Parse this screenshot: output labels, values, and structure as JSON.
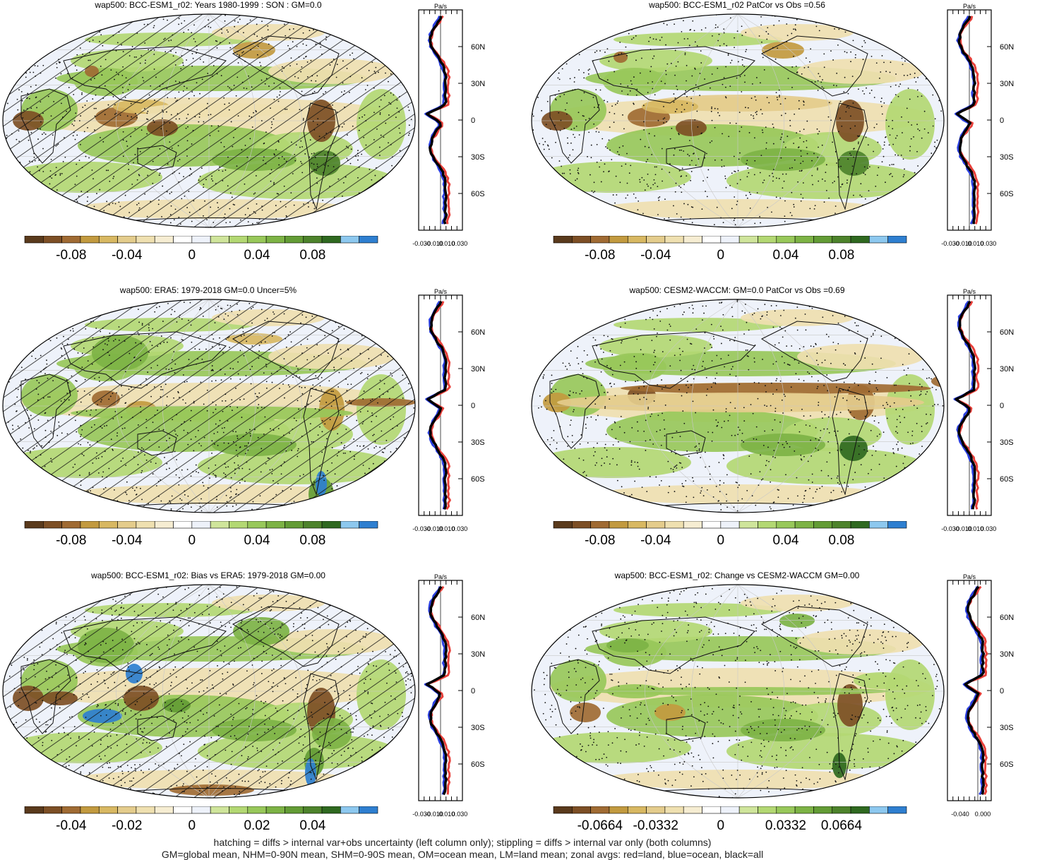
{
  "palette": [
    "#5a3a1c",
    "#7d4f25",
    "#a06b33",
    "#c29a3f",
    "#d8b862",
    "#e4cc8c",
    "#efe0b0",
    "#f6edd2",
    "#ffffff",
    "#eef2fa",
    "#cfe59b",
    "#b3d873",
    "#98c85a",
    "#7db345",
    "#639c35",
    "#4d832b",
    "#2f6920",
    "#8dc8ef",
    "#2e7fd0"
  ],
  "colors": {
    "land": "#e8403a",
    "ocean": "#2b3fe0",
    "all": "#000000",
    "coast": "#111111"
  },
  "footer": {
    "line1": "hatching = diffs > internal var+obs uncertainty (left column only); stippling = diffs > internal var only (both columns)",
    "line2": "GM=global mean, NHM=0-90N mean, SHM=0-90S mean, OM=ocean mean, LM=land mean; zonal avgs: red=land, blue=ocean, black=all"
  },
  "panels": [
    {
      "id": "p1",
      "title": "wap500: BCC-ESM1_r02: Years 1980-1999 : SON : GM=0.0",
      "hatched": true,
      "stipple": true,
      "cbar_labels": [
        "-0.08",
        "-0.04",
        "0",
        "0.04",
        "0.08"
      ],
      "zonal_ticks": [
        "-0.030",
        "-0.010",
        "0.010",
        "0.030"
      ],
      "unit": "Pa/s"
    },
    {
      "id": "p2",
      "title": "wap500: BCC-ESM1_r02 PatCor vs Obs =0.56",
      "hatched": false,
      "stipple": true,
      "cbar_labels": [
        "-0.08",
        "-0.04",
        "0",
        "0.04",
        "0.08"
      ],
      "zonal_ticks": [
        "-0.030",
        "-0.010",
        "0.010",
        "0.030"
      ],
      "unit": "Pa/s"
    },
    {
      "id": "p3",
      "title": "wap500: ERA5: 1979-2018 GM=0.0 Uncer=5%",
      "hatched": true,
      "stipple": true,
      "cbar_labels": [
        "-0.08",
        "-0.04",
        "0",
        "0.04",
        "0.08"
      ],
      "zonal_ticks": [
        "-0.030",
        "-0.010",
        "0.010",
        "0.030"
      ],
      "unit": "Pa/s"
    },
    {
      "id": "p4",
      "title": "wap500: CESM2-WACCM: GM=0.0 PatCor vs Obs =0.69",
      "hatched": false,
      "stipple": true,
      "cbar_labels": [
        "-0.08",
        "-0.04",
        "0",
        "0.04",
        "0.08"
      ],
      "zonal_ticks": [
        "-0.030",
        "-0.010",
        "0.010",
        "0.030"
      ],
      "unit": "Pa/s"
    },
    {
      "id": "p5",
      "title": "wap500: BCC-ESM1_r02: Bias vs ERA5: 1979-2018  GM=0.00",
      "hatched": true,
      "stipple": true,
      "cbar_labels": [
        "-0.04",
        "-0.02",
        "0",
        "0.02",
        "0.04"
      ],
      "zonal_ticks": [
        "-0.030",
        "-0.010",
        "0.010",
        "0.030"
      ],
      "unit": "Pa/s"
    },
    {
      "id": "p6",
      "title": "wap500: BCC-ESM1_r02: Change vs CESM2-WACCM GM=0.00",
      "hatched": false,
      "stipple": true,
      "cbar_labels": [
        "-0.0664",
        "-0.0332",
        "0",
        "0.0332",
        "0.0664"
      ],
      "zonal_ticks": [
        "-0.040",
        "0.000"
      ],
      "unit": "Pa/s"
    }
  ],
  "lat_labels": [
    "60N",
    "30N",
    "0",
    "30S",
    "60S"
  ],
  "chart_data": [
    {
      "type": "heatmap",
      "title": "wap500: BCC-ESM1_r02: Years 1980-1999 : SON : GM=0.0",
      "colorbar": [
        -0.08,
        -0.04,
        0,
        0.04,
        0.08
      ],
      "zonal_xlim": [
        -0.03,
        0.03
      ],
      "zonal_xticks": [
        -0.03,
        -0.01,
        0.01,
        0.03
      ],
      "lat_ticks": [
        60,
        30,
        0,
        -30,
        -60
      ]
    },
    {
      "type": "heatmap",
      "title": "wap500: BCC-ESM1_r02 PatCor vs Obs =0.56",
      "colorbar": [
        -0.08,
        -0.04,
        0,
        0.04,
        0.08
      ],
      "zonal_xlim": [
        -0.03,
        0.03
      ],
      "zonal_xticks": [
        -0.03,
        -0.01,
        0.01,
        0.03
      ],
      "lat_ticks": [
        60,
        30,
        0,
        -30,
        -60
      ]
    },
    {
      "type": "heatmap",
      "title": "wap500: ERA5: 1979-2018 GM=0.0 Uncer=5%",
      "colorbar": [
        -0.08,
        -0.04,
        0,
        0.04,
        0.08
      ],
      "zonal_xlim": [
        -0.03,
        0.03
      ],
      "zonal_xticks": [
        -0.03,
        -0.01,
        0.01,
        0.03
      ],
      "lat_ticks": [
        60,
        30,
        0,
        -30,
        -60
      ]
    },
    {
      "type": "heatmap",
      "title": "wap500: CESM2-WACCM: GM=0.0 PatCor vs Obs =0.69",
      "colorbar": [
        -0.08,
        -0.04,
        0,
        0.04,
        0.08
      ],
      "zonal_xlim": [
        -0.03,
        0.03
      ],
      "zonal_xticks": [
        -0.03,
        -0.01,
        0.01,
        0.03
      ],
      "lat_ticks": [
        60,
        30,
        0,
        -30,
        -60
      ]
    },
    {
      "type": "heatmap",
      "title": "wap500: BCC-ESM1_r02: Bias vs ERA5: 1979-2018  GM=0.00",
      "colorbar": [
        -0.04,
        -0.02,
        0,
        0.02,
        0.04
      ],
      "zonal_xlim": [
        -0.03,
        0.03
      ],
      "zonal_xticks": [
        -0.03,
        -0.01,
        0.01,
        0.03
      ],
      "lat_ticks": [
        60,
        30,
        0,
        -30,
        -60
      ]
    },
    {
      "type": "heatmap",
      "title": "wap500: BCC-ESM1_r02: Change vs CESM2-WACCM GM=0.00",
      "colorbar": [
        -0.0664,
        -0.0332,
        0,
        0.0332,
        0.0664
      ],
      "zonal_xlim": [
        -0.05,
        0.01
      ],
      "zonal_xticks": [
        -0.04,
        0.0
      ],
      "lat_ticks": [
        60,
        30,
        0,
        -30,
        -60
      ]
    }
  ]
}
